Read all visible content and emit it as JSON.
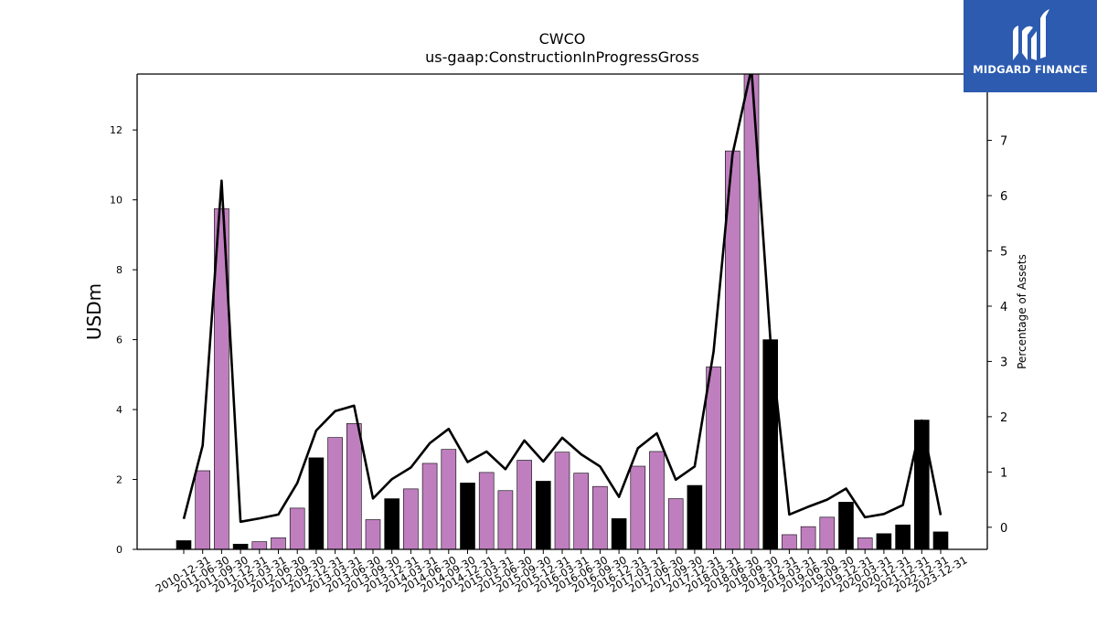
{
  "logo": {
    "text": "MIDGARD FINANCE",
    "bg_color": "#2c5bb0"
  },
  "chart_data": {
    "type": "bar",
    "title": "CWCO",
    "subtitle": "us-gaap:ConstructionInProgressGross",
    "ylabel": "USDm",
    "y2label": "Percentage of Assets",
    "ylim": [
      0,
      13.6
    ],
    "y2lim": [
      -0.4,
      8.2
    ],
    "yticks": [
      0,
      2,
      4,
      6,
      8,
      10,
      12
    ],
    "y2ticks": [
      0,
      1,
      2,
      3,
      4,
      5,
      6,
      7
    ],
    "colors": {
      "annual": "#000000",
      "quarterly": "#bf7fbf",
      "line": "#000000"
    },
    "categories": [
      "2010-12-31",
      "2011-06-30",
      "2011-09-30",
      "2011-12-31",
      "2012-03-31",
      "2012-06-30",
      "2012-09-30",
      "2012-12-31",
      "2013-03-31",
      "2013-06-30",
      "2013-09-30",
      "2013-12-31",
      "2014-03-31",
      "2014-06-30",
      "2014-09-30",
      "2014-12-31",
      "2015-03-31",
      "2015-06-30",
      "2015-09-30",
      "2015-12-31",
      "2016-03-31",
      "2016-06-30",
      "2016-09-30",
      "2016-12-31",
      "2017-03-31",
      "2017-06-30",
      "2017-09-30",
      "2017-12-31",
      "2018-03-31",
      "2018-06-30",
      "2018-09-30",
      "2018-12-31",
      "2019-03-31",
      "2019-06-30",
      "2019-09-30",
      "2019-12-31",
      "2020-03-31",
      "2020-12-31",
      "2021-12-31",
      "2022-12-31",
      "2023-12-31"
    ],
    "series": [
      {
        "kind": "bar",
        "values": [
          0.25,
          2.25,
          9.75,
          0.15,
          0.22,
          0.33,
          1.18,
          2.62,
          3.2,
          3.6,
          0.85,
          1.45,
          1.73,
          2.46,
          2.86,
          1.9,
          2.2,
          1.68,
          2.55,
          1.95,
          2.78,
          2.18,
          1.8,
          0.88,
          2.38,
          2.8,
          1.45,
          1.83,
          5.22,
          11.4,
          13.7,
          6.0,
          0.42,
          0.65,
          0.92,
          1.35,
          0.33,
          0.45,
          0.7,
          3.7,
          0.5
        ],
        "annual": [
          true,
          false,
          false,
          true,
          false,
          false,
          false,
          true,
          false,
          false,
          false,
          true,
          false,
          false,
          false,
          true,
          false,
          false,
          false,
          true,
          false,
          false,
          false,
          true,
          false,
          false,
          false,
          true,
          false,
          false,
          false,
          true,
          false,
          false,
          false,
          true,
          false,
          true,
          true,
          true,
          true
        ]
      },
      {
        "kind": "line",
        "axis": "right",
        "values": [
          0.15,
          1.48,
          6.27,
          0.1,
          0.16,
          0.23,
          0.8,
          1.75,
          2.1,
          2.2,
          0.52,
          0.87,
          1.08,
          1.52,
          1.78,
          1.18,
          1.37,
          1.05,
          1.57,
          1.19,
          1.62,
          1.32,
          1.1,
          0.55,
          1.43,
          1.7,
          0.86,
          1.1,
          3.18,
          6.75,
          8.3,
          3.4,
          0.23,
          0.37,
          0.5,
          0.7,
          0.18,
          0.24,
          0.4,
          1.93,
          0.22
        ]
      }
    ]
  }
}
